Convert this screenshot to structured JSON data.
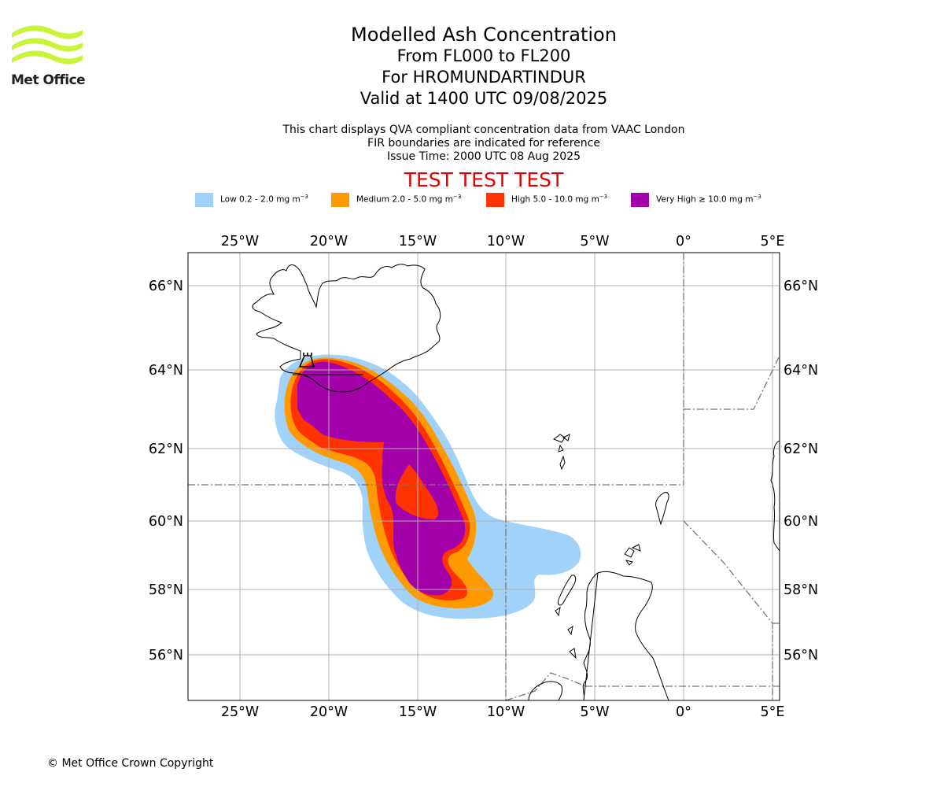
{
  "header": {
    "logo_text": "Met Office",
    "title": "Modelled Ash Concentration",
    "level_range": "From FL000 to FL200",
    "volcano": "For HROMUNDARTINDUR",
    "valid_time": "Valid at 1400 UTC 09/08/2025",
    "info_lines": [
      "This chart displays QVA compliant concentration data from VAAC London",
      "FIR boundaries are indicated for reference",
      "Issue Time: 2000 UTC 08 Aug 2025"
    ],
    "test_banner": "TEST TEST TEST"
  },
  "legend": [
    {
      "label": "Low 0.2 - 2.0 mg m",
      "sup": "−3",
      "color": "#a0d2fa"
    },
    {
      "label": "Medium 2.0 - 5.0 mg m",
      "sup": "−3",
      "color": "#ff9900"
    },
    {
      "label": "High 5.0 - 10.0 mg m",
      "sup": "−3",
      "color": "#ff3300"
    },
    {
      "label": "Very High  ≥  10.0 mg m",
      "sup": "−3",
      "color": "#a200a8"
    }
  ],
  "map": {
    "lon_labels": [
      "25°W",
      "20°W",
      "15°W",
      "10°W",
      "5°W",
      "0°",
      "5°E"
    ],
    "lat_labels": [
      "66°N",
      "64°N",
      "62°N",
      "60°N",
      "58°N",
      "56°N"
    ]
  },
  "footer": {
    "copyright": "© Met Office Crown Copyright"
  }
}
